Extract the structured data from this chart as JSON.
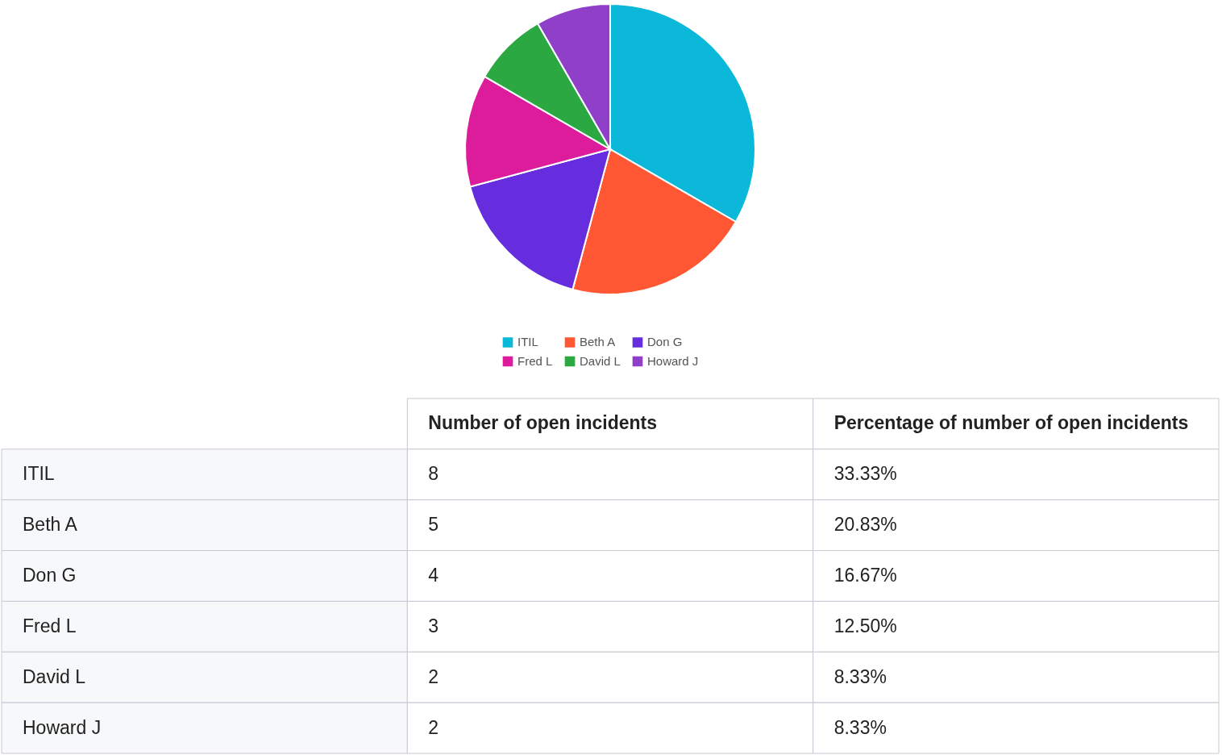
{
  "chart_data": {
    "type": "pie",
    "categories": [
      "ITIL",
      "Beth A",
      "Don G",
      "Fred L",
      "David L",
      "Howard J"
    ],
    "values": [
      33.33,
      20.83,
      16.67,
      12.5,
      8.33,
      8.33
    ],
    "colors": [
      "#0bb8d9",
      "#ff5733",
      "#652ddd",
      "#dd1c9c",
      "#2ca843",
      "#9040c8"
    ],
    "legend": "bottom",
    "annotations": [
      "Number of open incidents",
      "Percentage of number of open incidents",
      "8",
      "5",
      "4",
      "3",
      "2",
      "2",
      "33.33%",
      "20.83%",
      "16.67%",
      "12.50%",
      "8.33%",
      "8.33%"
    ]
  }
}
